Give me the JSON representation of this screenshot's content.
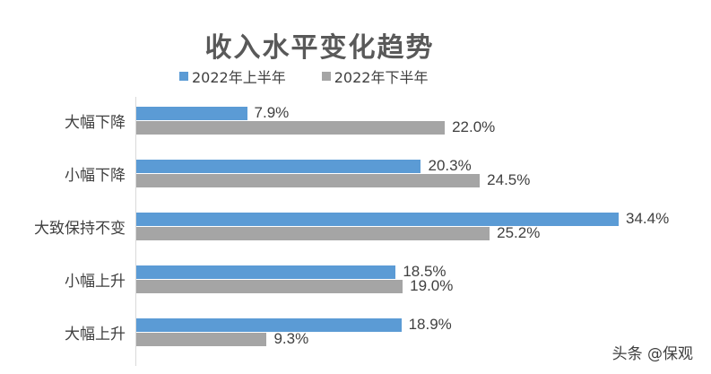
{
  "title": "收入水平变化趋势",
  "legend": [
    {
      "label": "2022年上半年",
      "color": "#5b9bd5"
    },
    {
      "label": "2022年下半年",
      "color": "#a5a5a5"
    }
  ],
  "watermark": "头条 @保观",
  "chart_data": {
    "type": "bar",
    "orientation": "horizontal",
    "title": "收入水平变化趋势",
    "categories": [
      "大幅下降",
      "小幅下降",
      "大致保持不变",
      "小幅上升",
      "大幅上升"
    ],
    "series": [
      {
        "name": "2022年上半年",
        "color": "#5b9bd5",
        "values": [
          7.9,
          20.3,
          34.4,
          18.5,
          18.9
        ],
        "labels": [
          "7.9%",
          "20.3%",
          "34.4%",
          "18.5%",
          "18.9%"
        ]
      },
      {
        "name": "2022年下半年",
        "color": "#a5a5a5",
        "values": [
          22.0,
          24.5,
          25.2,
          19.0,
          9.3
        ],
        "labels": [
          "22.0%",
          "24.5%",
          "25.2%",
          "19.0%",
          "9.3%"
        ]
      }
    ],
    "xlabel": "",
    "ylabel": "",
    "unit": "%",
    "grid": false,
    "legend_position": "top"
  }
}
